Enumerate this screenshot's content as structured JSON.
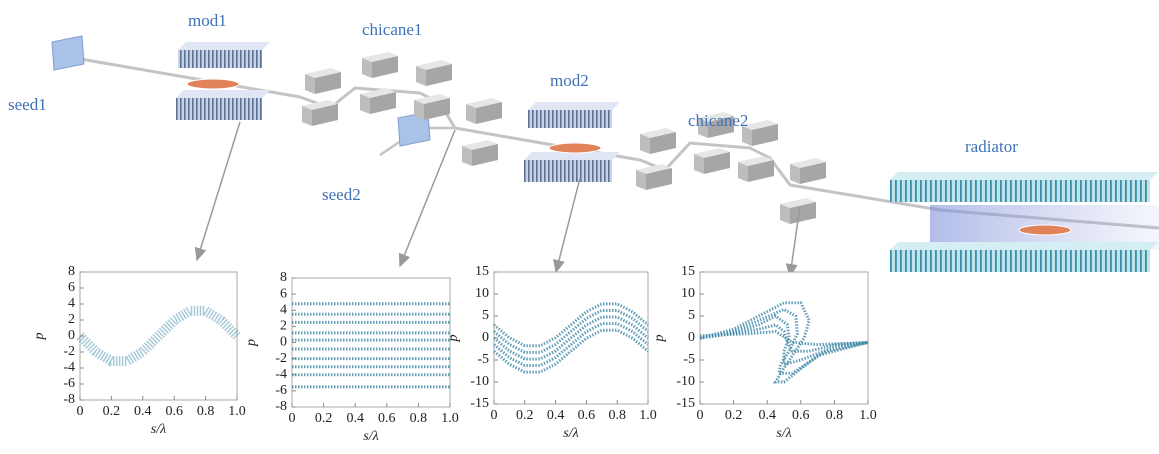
{
  "labels": {
    "seed1": "seed1",
    "mod1": "mod1",
    "chicane1": "chicane1",
    "seed2": "seed2",
    "mod2": "mod2",
    "chicane2": "chicane2",
    "radiator": "radiator"
  },
  "chart_data": [
    {
      "type": "scatter",
      "xlabel": "s/λ",
      "ylabel": "p",
      "color": "#3d87a8",
      "xlim": [
        0,
        1
      ],
      "ylim": [
        -8,
        8
      ],
      "xticks": [
        0,
        0.2,
        0.4,
        0.6,
        0.8,
        {
          "value": 1,
          "label": "1.0"
        }
      ],
      "yticks": [
        -8,
        -6,
        -4,
        -2,
        0,
        2,
        4,
        6,
        8
      ],
      "series": [
        {
          "x": [
            0,
            0.1,
            0.2,
            0.3,
            0.4,
            0.5,
            0.6,
            0.7,
            0.8,
            0.9,
            1
          ],
          "values": [
            0,
            -1.94,
            -3.14,
            -3.14,
            -1.94,
            0,
            1.94,
            3.14,
            3.14,
            1.94,
            0
          ]
        }
      ]
    },
    {
      "type": "scatter",
      "xlabel": "s/λ",
      "ylabel": "p",
      "color": "#3d87a8",
      "xlim": [
        0,
        1
      ],
      "ylim": [
        -8,
        8
      ],
      "xticks": [
        0,
        0.2,
        0.4,
        0.6,
        0.8,
        {
          "value": 1,
          "label": "1.0"
        }
      ],
      "yticks": [
        -8,
        -6,
        -4,
        -2,
        0,
        2,
        4,
        6,
        8
      ],
      "series": [
        {
          "x": [
            0,
            1
          ],
          "values": [
            4.8,
            4.8
          ]
        },
        {
          "x": [
            0,
            1
          ],
          "values": [
            3.5,
            3.5
          ]
        },
        {
          "x": [
            0,
            1
          ],
          "values": [
            2.5,
            2.5
          ]
        },
        {
          "x": [
            0,
            1
          ],
          "values": [
            1.2,
            1.2
          ]
        },
        {
          "x": [
            0,
            1
          ],
          "values": [
            0.3,
            0.3
          ]
        },
        {
          "x": [
            0,
            1
          ],
          "values": [
            -0.8,
            -0.8
          ]
        },
        {
          "x": [
            0,
            1
          ],
          "values": [
            -2,
            -2
          ]
        },
        {
          "x": [
            0,
            1
          ],
          "values": [
            -3,
            -3
          ]
        },
        {
          "x": [
            0,
            1
          ],
          "values": [
            -4,
            -4
          ]
        },
        {
          "x": [
            0,
            1
          ],
          "values": [
            -5.5,
            -5.5
          ]
        }
      ]
    },
    {
      "type": "scatter",
      "xlabel": "s/λ",
      "ylabel": "p",
      "color": "#3d87a8",
      "xlim": [
        0,
        1
      ],
      "ylim": [
        -15,
        15
      ],
      "xticks": [
        0,
        0.2,
        0.4,
        0.6,
        0.8,
        {
          "value": 1,
          "label": "1.0"
        }
      ],
      "yticks": [
        -15,
        -10,
        -5,
        0,
        5,
        10,
        15
      ],
      "series": [
        {
          "x": [
            0,
            0.1,
            0.2,
            0.3,
            0.4,
            0.5,
            0.6,
            0.7,
            0.8,
            0.9,
            1
          ],
          "values": [
            3,
            0.06,
            -1.76,
            -1.76,
            0.06,
            3,
            5.94,
            7.76,
            7.76,
            5.94,
            3
          ]
        },
        {
          "x": [
            0,
            0.1,
            0.2,
            0.3,
            0.4,
            0.5,
            0.6,
            0.7,
            0.8,
            0.9,
            1
          ],
          "values": [
            1.5,
            -1.44,
            -3.26,
            -3.26,
            -1.44,
            1.5,
            4.44,
            6.26,
            6.26,
            4.44,
            1.5
          ]
        },
        {
          "x": [
            0,
            0.1,
            0.2,
            0.3,
            0.4,
            0.5,
            0.6,
            0.7,
            0.8,
            0.9,
            1
          ],
          "values": [
            0,
            -2.94,
            -4.76,
            -4.76,
            -2.94,
            0,
            2.94,
            4.76,
            4.76,
            2.94,
            0
          ]
        },
        {
          "x": [
            0,
            0.1,
            0.2,
            0.3,
            0.4,
            0.5,
            0.6,
            0.7,
            0.8,
            0.9,
            1
          ],
          "values": [
            -1.5,
            -4.44,
            -6.26,
            -6.26,
            -4.44,
            -1.5,
            1.44,
            3.26,
            3.26,
            1.44,
            -1.5
          ]
        },
        {
          "x": [
            0,
            0.1,
            0.2,
            0.3,
            0.4,
            0.5,
            0.6,
            0.7,
            0.8,
            0.9,
            1
          ],
          "values": [
            -3,
            -5.94,
            -7.76,
            -7.76,
            -5.94,
            -3,
            -0.06,
            1.76,
            1.76,
            -0.06,
            -3
          ]
        }
      ]
    },
    {
      "type": "scatter",
      "xlabel": "s/λ",
      "ylabel": "p",
      "color": "#3d87a8",
      "xlim": [
        0,
        1
      ],
      "ylim": [
        -15,
        15
      ],
      "xticks": [
        0,
        0.2,
        0.4,
        0.6,
        0.8,
        {
          "value": 1,
          "label": "1.0"
        }
      ],
      "yticks": [
        -15,
        -10,
        -5,
        0,
        5,
        10,
        15
      ],
      "series": [
        {
          "x": [
            0,
            0.2,
            0.35,
            0.5,
            0.6,
            0.65,
            0.62,
            0.55,
            0.48,
            0.45,
            0.5,
            0.7,
            1
          ],
          "values": [
            0,
            2,
            5,
            8,
            8,
            4,
            0,
            -4,
            -8,
            -10,
            -10,
            -4,
            -1
          ]
        },
        {
          "x": [
            0,
            0.2,
            0.35,
            0.5,
            0.57,
            0.58,
            0.53,
            0.48,
            0.47,
            0.55,
            0.75,
            1
          ],
          "values": [
            0,
            1.5,
            4,
            6.5,
            5,
            1,
            -3,
            -6,
            -8,
            -8,
            -3,
            -1
          ]
        },
        {
          "x": [
            0,
            0.2,
            0.35,
            0.45,
            0.52,
            0.53,
            0.5,
            0.5,
            0.6,
            0.8,
            1
          ],
          "values": [
            0,
            1.2,
            3,
            5,
            3,
            0,
            -3,
            -6,
            -5,
            -2,
            -1
          ]
        },
        {
          "x": [
            0,
            0.2,
            0.35,
            0.45,
            0.5,
            0.52,
            0.55,
            0.65,
            0.8,
            1
          ],
          "values": [
            0,
            1,
            2,
            3,
            1.5,
            -1,
            -3,
            -3,
            -1.5,
            -1
          ]
        },
        {
          "x": [
            0,
            0.3,
            0.45,
            0.55,
            0.7,
            1
          ],
          "values": [
            0.5,
            1,
            1.5,
            -1,
            -1.5,
            -1
          ]
        }
      ]
    }
  ]
}
